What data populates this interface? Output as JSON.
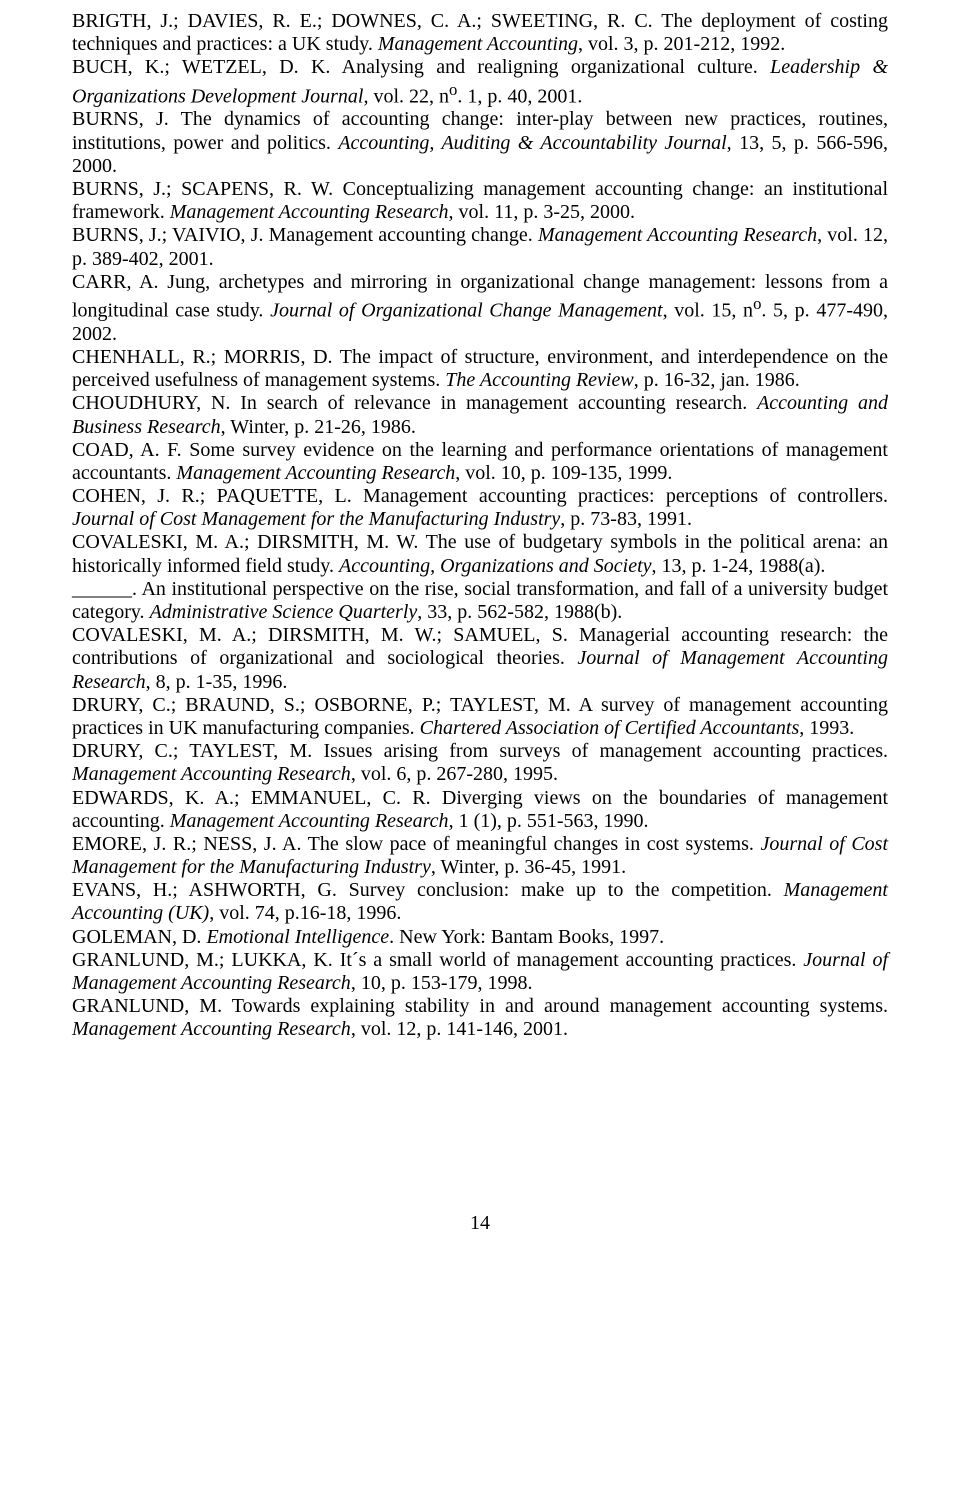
{
  "references": [
    "BRIGTH, J.; DAVIES, R. E.; DOWNES, C. A.; SWEETING, R. C. The deployment of costing techniques and practices: a UK study. <em>Management Accounting</em>, vol. 3, p. 201-212, 1992.",
    "BUCH, K.; WETZEL, D. K. Analysing and realigning organizational culture. <em>Leadership &amp; Organizations Development Journal</em>, vol. 22, n<sup>o</sup>. 1, p. 40, 2001.",
    "BURNS, J. The dynamics of accounting change: inter-play between new practices, routines, institutions, power and politics. <em>Accounting, Auditing &amp; Accountability Journal</em>, 13, 5, p. 566-596, 2000.",
    "BURNS, J.; SCAPENS, R. W. Conceptualizing management accounting change: an institutional framework. <em>Management Accounting Research</em>, vol. 11, p. 3-25, 2000.",
    "BURNS, J.; VAIVIO, J. Management accounting change. <em>Management Accounting Research</em>, vol. 12, p. 389-402, 2001.",
    "CARR, A. Jung, archetypes and mirroring in organizational change management: lessons from a longitudinal case study. <em>Journal of Organizational Change Management</em>, vol. 15, n<sup>o</sup>. 5, p. 477-490, 2002.",
    "CHENHALL, R.; MORRIS, D. The impact of structure, environment, and interdependence on the perceived usefulness of management systems. <em>The Accounting Review</em>, p. 16-32, jan. 1986.",
    "CHOUDHURY, N. In search of relevance in management accounting research. <em>Accounting and Business Research</em>, Winter, p. 21-26, 1986.",
    "COAD, A. F. Some survey evidence on the learning and performance orientations of management accountants. <em>Management Accounting Research</em>, vol. 10, p. 109-135, 1999.",
    "COHEN, J. R.; PAQUETTE, L. Management accounting practices: perceptions of controllers. <em>Journal of Cost Management for the Manufacturing Industry</em>, p. 73-83, 1991.",
    "COVALESKI, M. A.; DIRSMITH, M. W. The use of budgetary symbols in the political arena: an historically informed field study. <em>Accounting, Organizations and Society</em>, 13, p. 1-24, 1988(a).",
    "______. An institutional perspective on the rise, social transformation, and fall of a university budget category. <em>Administrative Science Quarterly</em>, 33, p. 562-582, 1988(b).",
    "COVALESKI, M. A.; DIRSMITH, M. W.; SAMUEL, S. Managerial accounting research: the contributions of organizational and sociological theories. <em>Journal of Management Accounting Research</em>, 8, p. 1-35, 1996.",
    "DRURY, C.; BRAUND, S.; OSBORNE, P.; TAYLEST, M. A survey of management accounting practices in UK manufacturing companies. <em>Chartered Association of Certified Accountants</em>, 1993.",
    "DRURY, C.; TAYLEST, M. Issues arising from surveys of management accounting practices. <em>Management Accounting Research</em>, vol. 6, p. 267-280, 1995.",
    "EDWARDS, K. A.; EMMANUEL, C. R. Diverging views on the boundaries of management accounting. <em>Management Accounting Research</em>, 1 (1), p. 551-563, 1990.",
    "EMORE, J. R.; NESS, J. A. The slow pace of meaningful changes in cost systems. <em>Journal of Cost Management for the Manufacturing Industry</em>, Winter, p. 36-45, 1991.",
    "EVANS, H.; ASHWORTH, G. Survey conclusion: make up to the competition. <em>Management Accounting (UK)</em>, vol. 74, p.16-18, 1996.",
    "GOLEMAN, D.  <em>Emotional Intelligence</em>. New York: Bantam Books, 1997.",
    "GRANLUND, M.; LUKKA, K. It´s a small world of management accounting practices. <em>Journal of Management Accounting Research</em>, 10, p. 153-179, 1998.",
    "GRANLUND, M. Towards explaining stability in and around management accounting systems. <em>Management Accounting Research</em>, vol. 12, p. 141-146, 2001."
  ],
  "pageNumber": "14",
  "style": {
    "font_family": "Times New Roman",
    "font_size_pt": 15,
    "text_color": "#000000",
    "background_color": "#ffffff",
    "alignment": "justify"
  }
}
